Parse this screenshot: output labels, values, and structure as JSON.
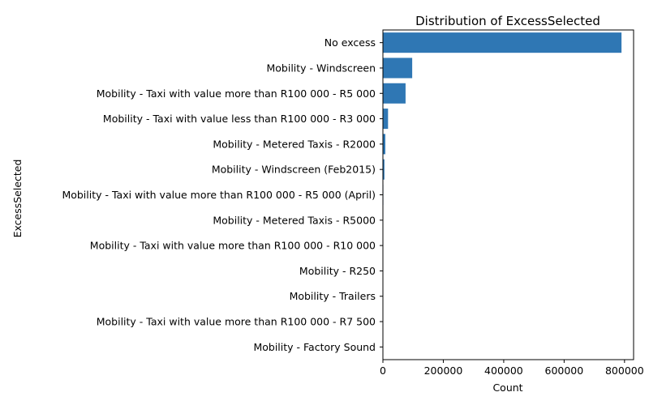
{
  "chart_data": {
    "type": "bar",
    "orientation": "horizontal",
    "title": "Distribution of ExcessSelected",
    "xlabel": "Count",
    "ylabel": "ExcessSelected",
    "xlim": [
      0,
      830000
    ],
    "xticks": [
      0,
      200000,
      400000,
      600000,
      800000
    ],
    "grid": false,
    "bar_color": "#2f77b4",
    "categories": [
      "No excess",
      "Mobility - Windscreen",
      "Mobility - Taxi with value more than R100 000 - R5 000",
      "Mobility - Taxi with value less than R100 000 - R3 000",
      "Mobility - Metered Taxis - R2000",
      "Mobility - Windscreen (Feb2015)",
      "Mobility - Taxi with value more than R100 000 - R5 000 (April)",
      "Mobility - Metered Taxis - R5000",
      "Mobility - Taxi with value more than R100 000 - R10 000",
      "Mobility - R250",
      "Mobility - Trailers",
      "Mobility - Taxi with value more than R100 000 - R7 500",
      "Mobility - Factory Sound"
    ],
    "values": [
      790000,
      97000,
      75000,
      17000,
      8000,
      5000,
      1500,
      1000,
      700,
      500,
      300,
      200,
      100
    ]
  }
}
